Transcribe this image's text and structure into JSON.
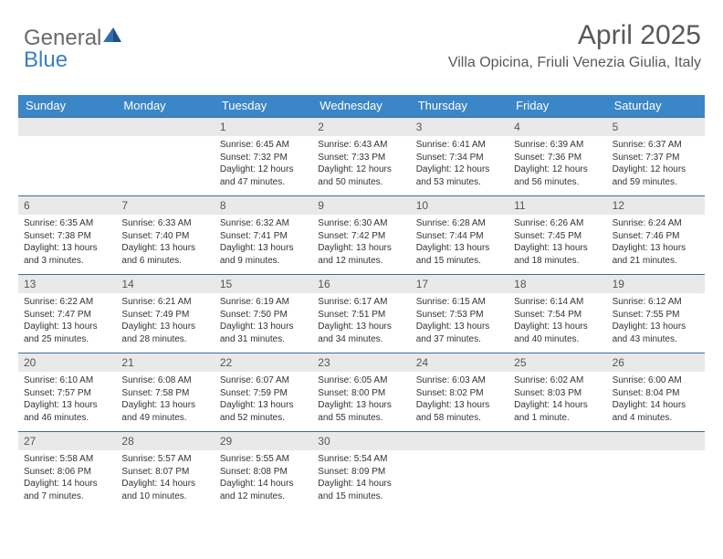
{
  "logo": {
    "text1": "General",
    "text2": "Blue"
  },
  "title": "April 2025",
  "location": "Villa Opicina, Friuli Venezia Giulia, Italy",
  "colors": {
    "header_bg": "#3b86c6",
    "header_text": "#ffffff",
    "cell_border": "#3b6fa0",
    "daynum_bg": "#e9e9e9",
    "body_text": "#333333",
    "title_text": "#595959"
  },
  "day_headers": [
    "Sunday",
    "Monday",
    "Tuesday",
    "Wednesday",
    "Thursday",
    "Friday",
    "Saturday"
  ],
  "leading_blanks": 2,
  "days": [
    {
      "n": 1,
      "sunrise": "6:45 AM",
      "sunset": "7:32 PM",
      "daylight": "12 hours and 47 minutes."
    },
    {
      "n": 2,
      "sunrise": "6:43 AM",
      "sunset": "7:33 PM",
      "daylight": "12 hours and 50 minutes."
    },
    {
      "n": 3,
      "sunrise": "6:41 AM",
      "sunset": "7:34 PM",
      "daylight": "12 hours and 53 minutes."
    },
    {
      "n": 4,
      "sunrise": "6:39 AM",
      "sunset": "7:36 PM",
      "daylight": "12 hours and 56 minutes."
    },
    {
      "n": 5,
      "sunrise": "6:37 AM",
      "sunset": "7:37 PM",
      "daylight": "12 hours and 59 minutes."
    },
    {
      "n": 6,
      "sunrise": "6:35 AM",
      "sunset": "7:38 PM",
      "daylight": "13 hours and 3 minutes."
    },
    {
      "n": 7,
      "sunrise": "6:33 AM",
      "sunset": "7:40 PM",
      "daylight": "13 hours and 6 minutes."
    },
    {
      "n": 8,
      "sunrise": "6:32 AM",
      "sunset": "7:41 PM",
      "daylight": "13 hours and 9 minutes."
    },
    {
      "n": 9,
      "sunrise": "6:30 AM",
      "sunset": "7:42 PM",
      "daylight": "13 hours and 12 minutes."
    },
    {
      "n": 10,
      "sunrise": "6:28 AM",
      "sunset": "7:44 PM",
      "daylight": "13 hours and 15 minutes."
    },
    {
      "n": 11,
      "sunrise": "6:26 AM",
      "sunset": "7:45 PM",
      "daylight": "13 hours and 18 minutes."
    },
    {
      "n": 12,
      "sunrise": "6:24 AM",
      "sunset": "7:46 PM",
      "daylight": "13 hours and 21 minutes."
    },
    {
      "n": 13,
      "sunrise": "6:22 AM",
      "sunset": "7:47 PM",
      "daylight": "13 hours and 25 minutes."
    },
    {
      "n": 14,
      "sunrise": "6:21 AM",
      "sunset": "7:49 PM",
      "daylight": "13 hours and 28 minutes."
    },
    {
      "n": 15,
      "sunrise": "6:19 AM",
      "sunset": "7:50 PM",
      "daylight": "13 hours and 31 minutes."
    },
    {
      "n": 16,
      "sunrise": "6:17 AM",
      "sunset": "7:51 PM",
      "daylight": "13 hours and 34 minutes."
    },
    {
      "n": 17,
      "sunrise": "6:15 AM",
      "sunset": "7:53 PM",
      "daylight": "13 hours and 37 minutes."
    },
    {
      "n": 18,
      "sunrise": "6:14 AM",
      "sunset": "7:54 PM",
      "daylight": "13 hours and 40 minutes."
    },
    {
      "n": 19,
      "sunrise": "6:12 AM",
      "sunset": "7:55 PM",
      "daylight": "13 hours and 43 minutes."
    },
    {
      "n": 20,
      "sunrise": "6:10 AM",
      "sunset": "7:57 PM",
      "daylight": "13 hours and 46 minutes."
    },
    {
      "n": 21,
      "sunrise": "6:08 AM",
      "sunset": "7:58 PM",
      "daylight": "13 hours and 49 minutes."
    },
    {
      "n": 22,
      "sunrise": "6:07 AM",
      "sunset": "7:59 PM",
      "daylight": "13 hours and 52 minutes."
    },
    {
      "n": 23,
      "sunrise": "6:05 AM",
      "sunset": "8:00 PM",
      "daylight": "13 hours and 55 minutes."
    },
    {
      "n": 24,
      "sunrise": "6:03 AM",
      "sunset": "8:02 PM",
      "daylight": "13 hours and 58 minutes."
    },
    {
      "n": 25,
      "sunrise": "6:02 AM",
      "sunset": "8:03 PM",
      "daylight": "14 hours and 1 minute."
    },
    {
      "n": 26,
      "sunrise": "6:00 AM",
      "sunset": "8:04 PM",
      "daylight": "14 hours and 4 minutes."
    },
    {
      "n": 27,
      "sunrise": "5:58 AM",
      "sunset": "8:06 PM",
      "daylight": "14 hours and 7 minutes."
    },
    {
      "n": 28,
      "sunrise": "5:57 AM",
      "sunset": "8:07 PM",
      "daylight": "14 hours and 10 minutes."
    },
    {
      "n": 29,
      "sunrise": "5:55 AM",
      "sunset": "8:08 PM",
      "daylight": "14 hours and 12 minutes."
    },
    {
      "n": 30,
      "sunrise": "5:54 AM",
      "sunset": "8:09 PM",
      "daylight": "14 hours and 15 minutes."
    }
  ],
  "labels": {
    "sunrise": "Sunrise:",
    "sunset": "Sunset:",
    "daylight": "Daylight:"
  }
}
